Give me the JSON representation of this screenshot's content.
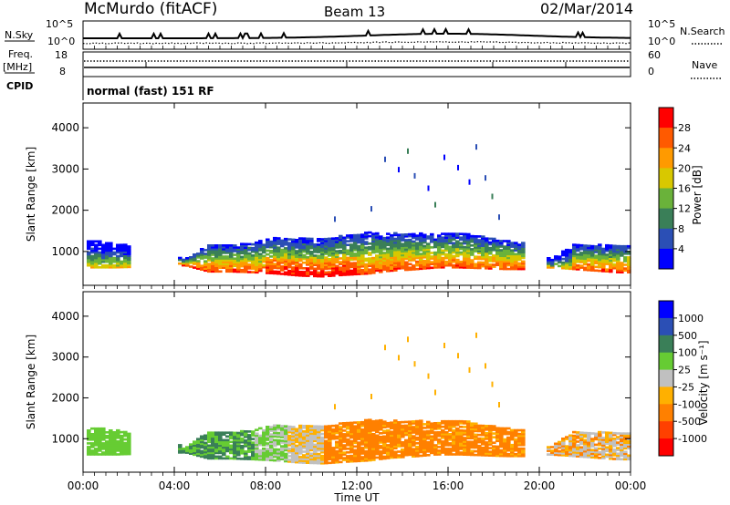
{
  "header": {
    "station": "McMurdo (fitACF)",
    "beam": "Beam 13",
    "date": "02/Mar/2014"
  },
  "strip": {
    "nsky_label": "N.Sky",
    "nsky_ticks": [
      "10^5",
      "10^0"
    ],
    "nsearch_label": "N.Search",
    "nsearch_ticks": [
      "10^5",
      "10^0"
    ],
    "freq_label": "Freq.",
    "freq_unit": "[MHz]",
    "freq_ticks": [
      "18",
      "8"
    ],
    "nave_label": "Nave",
    "nave_ticks": [
      "60",
      "0"
    ],
    "cpid_label": "CPID",
    "cpid_text": "normal (fast) 151 RF"
  },
  "chart_data": [
    {
      "type": "heatmap",
      "panel": "power",
      "ylabel": "Slant Range [km]",
      "ylim": [
        180,
        4600
      ],
      "yticks": [
        "1000",
        "2000",
        "3000",
        "4000"
      ],
      "xlabel": "",
      "colorbar_label": "Power [dB]",
      "colorbar_ticks": [
        "4",
        "8",
        "12",
        "16",
        "20",
        "24",
        "28"
      ],
      "colors": [
        "#0000ff",
        "#2b4fb5",
        "#3a7f58",
        "#6ab23a",
        "#d8c800",
        "#ff9a00",
        "#ff5a00",
        "#ff0000"
      ],
      "echo_profile": {
        "time_h": [
          0.5,
          1.5,
          4.5,
          5.5,
          6.5,
          7.5,
          8.5,
          9.5,
          10.5,
          11.5,
          12.5,
          13.5,
          14.5,
          15.5,
          16.5,
          17.5,
          18.5,
          19.5,
          20.5,
          21.5,
          22.5,
          23.5
        ],
        "lower_km": [
          600,
          600,
          650,
          500,
          500,
          480,
          450,
          400,
          380,
          420,
          450,
          520,
          550,
          600,
          600,
          580,
          560,
          560,
          600,
          560,
          520,
          480
        ],
        "upper_km": [
          1250,
          1200,
          800,
          1150,
          1150,
          1200,
          1350,
          1300,
          1300,
          1380,
          1450,
          1420,
          1450,
          1400,
          1450,
          1350,
          1250,
          1200,
          800,
          1150,
          1150,
          1150
        ]
      }
    },
    {
      "type": "heatmap",
      "panel": "velocity",
      "ylabel": "Slant Range [km]",
      "ylim": [
        180,
        4600
      ],
      "yticks": [
        "1000",
        "2000",
        "3000",
        "4000"
      ],
      "xlabel": "Time UT",
      "xticks": [
        "00:00",
        "04:00",
        "08:00",
        "12:00",
        "16:00",
        "20:00",
        "00:00"
      ],
      "colorbar_label": "Velocity [m s⁻¹]",
      "colorbar_ticks": [
        "1000",
        "500",
        "100",
        "25",
        "-25",
        "-100",
        "-500",
        "-1000"
      ],
      "colors": [
        "#0000ff",
        "#2b4fb5",
        "#3a7f58",
        "#66cc33",
        "#c0c0c0",
        "#ffb000",
        "#ff8000",
        "#ff4000",
        "#ff0000"
      ]
    }
  ]
}
